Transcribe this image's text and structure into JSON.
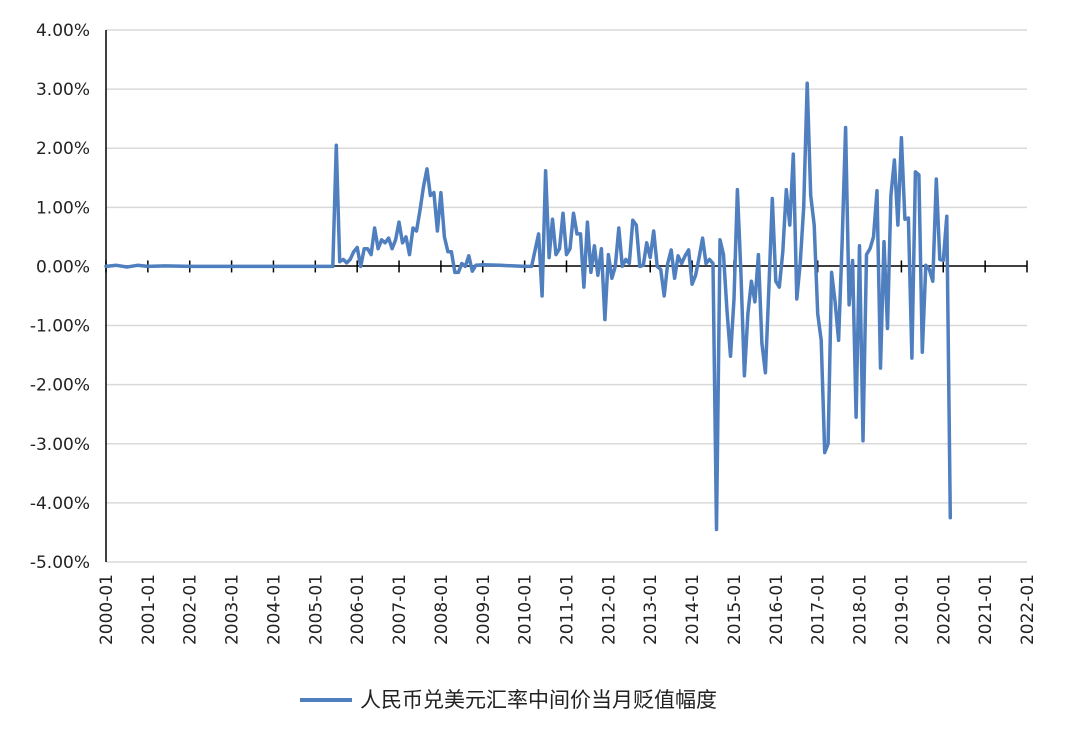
{
  "chart_data": {
    "type": "line",
    "title": "",
    "xlabel": "",
    "ylabel": "",
    "ylim": [
      -0.05,
      0.04
    ],
    "y_ticks": [
      "4.00%",
      "3.00%",
      "2.00%",
      "1.00%",
      "0.00%",
      "-1.00%",
      "-2.00%",
      "-3.00%",
      "-4.00%",
      "-5.00%"
    ],
    "y_tick_values": [
      0.04,
      0.03,
      0.02,
      0.01,
      0.0,
      -0.01,
      -0.02,
      -0.03,
      -0.04,
      -0.05
    ],
    "x_ticks": [
      "2000-01",
      "2001-01",
      "2002-01",
      "2003-01",
      "2004-01",
      "2005-01",
      "2006-01",
      "2007-01",
      "2008-01",
      "2009-01",
      "2010-01",
      "2011-01",
      "2012-01",
      "2013-01",
      "2014-01",
      "2015-01",
      "2016-01",
      "2017-01",
      "2018-01",
      "2019-01",
      "2020-01",
      "2021-01",
      "2022-01"
    ],
    "x_range": [
      "2000-01",
      "2022-01"
    ],
    "grid": "horizontal",
    "legend_position": "bottom",
    "colors": {
      "series": "#4f7fbf",
      "grid": "#d9d9d9",
      "axis": "#000000"
    },
    "series": [
      {
        "name": "人民币兑美元汇率中间价当月贬值幅度",
        "points": [
          [
            "2000-01",
            0.0
          ],
          [
            "2000-04",
            0.0002
          ],
          [
            "2000-07",
            -0.0001
          ],
          [
            "2000-10",
            0.0002
          ],
          [
            "2001-01",
            0.0
          ],
          [
            "2001-06",
            0.0001
          ],
          [
            "2002-01",
            0.0
          ],
          [
            "2003-01",
            0.0
          ],
          [
            "2004-01",
            0.0
          ],
          [
            "2005-01",
            0.0
          ],
          [
            "2005-06",
            0.0
          ],
          [
            "2005-07",
            0.0205
          ],
          [
            "2005-08",
            0.0008
          ],
          [
            "2005-09",
            0.0012
          ],
          [
            "2005-10",
            0.0006
          ],
          [
            "2005-11",
            0.0012
          ],
          [
            "2005-12",
            0.0025
          ],
          [
            "2006-01",
            0.0032
          ],
          [
            "2006-02",
            0.0
          ],
          [
            "2006-03",
            0.003
          ],
          [
            "2006-04",
            0.003
          ],
          [
            "2006-05",
            0.002
          ],
          [
            "2006-06",
            0.0065
          ],
          [
            "2006-07",
            0.003
          ],
          [
            "2006-08",
            0.0045
          ],
          [
            "2006-09",
            0.004
          ],
          [
            "2006-10",
            0.0048
          ],
          [
            "2006-11",
            0.003
          ],
          [
            "2006-12",
            0.0045
          ],
          [
            "2007-01",
            0.0075
          ],
          [
            "2007-02",
            0.004
          ],
          [
            "2007-03",
            0.005
          ],
          [
            "2007-04",
            0.002
          ],
          [
            "2007-05",
            0.0065
          ],
          [
            "2007-06",
            0.006
          ],
          [
            "2007-07",
            0.0095
          ],
          [
            "2007-08",
            0.0135
          ],
          [
            "2007-09",
            0.0165
          ],
          [
            "2007-10",
            0.012
          ],
          [
            "2007-11",
            0.0125
          ],
          [
            "2007-12",
            0.006
          ],
          [
            "2008-01",
            0.0125
          ],
          [
            "2008-02",
            0.005
          ],
          [
            "2008-03",
            0.0025
          ],
          [
            "2008-04",
            0.0025
          ],
          [
            "2008-05",
            -0.001
          ],
          [
            "2008-06",
            -0.001
          ],
          [
            "2008-07",
            0.0005
          ],
          [
            "2008-08",
            0.0
          ],
          [
            "2008-09",
            0.0018
          ],
          [
            "2008-10",
            -0.0008
          ],
          [
            "2008-11",
            0.0002
          ],
          [
            "2009-01",
            0.0003
          ],
          [
            "2009-06",
            0.0002
          ],
          [
            "2010-01",
            0.0
          ],
          [
            "2010-03",
            0.0
          ],
          [
            "2010-05",
            0.0055
          ],
          [
            "2010-06",
            -0.005
          ],
          [
            "2010-07",
            0.0162
          ],
          [
            "2010-08",
            0.0015
          ],
          [
            "2010-09",
            0.008
          ],
          [
            "2010-10",
            0.002
          ],
          [
            "2010-11",
            0.003
          ],
          [
            "2010-12",
            0.009
          ],
          [
            "2011-01",
            0.002
          ],
          [
            "2011-02",
            0.003
          ],
          [
            "2011-03",
            0.009
          ],
          [
            "2011-04",
            0.0055
          ],
          [
            "2011-05",
            0.0055
          ],
          [
            "2011-06",
            -0.0035
          ],
          [
            "2011-07",
            0.0075
          ],
          [
            "2011-08",
            -0.001
          ],
          [
            "2011-09",
            0.0035
          ],
          [
            "2011-10",
            -0.0015
          ],
          [
            "2011-11",
            0.003
          ],
          [
            "2011-12",
            -0.009
          ],
          [
            "2012-01",
            0.002
          ],
          [
            "2012-02",
            -0.002
          ],
          [
            "2012-03",
            0.0
          ],
          [
            "2012-04",
            0.0065
          ],
          [
            "2012-05",
            0.0
          ],
          [
            "2012-06",
            0.0012
          ],
          [
            "2012-07",
            0.0005
          ],
          [
            "2012-08",
            0.0078
          ],
          [
            "2012-09",
            0.007
          ],
          [
            "2012-10",
            0.0
          ],
          [
            "2012-11",
            0.0002
          ],
          [
            "2012-12",
            0.004
          ],
          [
            "2013-01",
            0.0015
          ],
          [
            "2013-02",
            0.006
          ],
          [
            "2013-03",
            0.0
          ],
          [
            "2013-04",
            -0.0005
          ],
          [
            "2013-05",
            -0.005
          ],
          [
            "2013-06",
            0.0005
          ],
          [
            "2013-07",
            0.0028
          ],
          [
            "2013-08",
            -0.002
          ],
          [
            "2013-09",
            0.0018
          ],
          [
            "2013-10",
            0.0005
          ],
          [
            "2013-11",
            0.0018
          ],
          [
            "2013-12",
            0.0028
          ],
          [
            "2014-01",
            -0.003
          ],
          [
            "2014-02",
            -0.0015
          ],
          [
            "2014-03",
            0.0015
          ],
          [
            "2014-04",
            0.0048
          ],
          [
            "2014-05",
            0.0005
          ],
          [
            "2014-06",
            0.0012
          ],
          [
            "2014-07",
            0.0005
          ],
          [
            "2014-08",
            -0.0445
          ],
          [
            "2014-09",
            0.0045
          ],
          [
            "2014-10",
            0.002
          ],
          [
            "2014-11",
            -0.0075
          ],
          [
            "2014-12",
            -0.0152
          ],
          [
            "2015-01",
            -0.0055
          ],
          [
            "2015-02",
            0.013
          ],
          [
            "2015-03",
            -0.001
          ],
          [
            "2015-04",
            -0.0185
          ],
          [
            "2015-05",
            -0.008
          ],
          [
            "2015-06",
            -0.0025
          ],
          [
            "2015-07",
            -0.006
          ],
          [
            "2015-08",
            0.002
          ],
          [
            "2015-09",
            -0.013
          ],
          [
            "2015-10",
            -0.018
          ],
          [
            "2015-11",
            -0.004
          ],
          [
            "2015-12",
            0.0115
          ],
          [
            "2016-01",
            -0.0025
          ],
          [
            "2016-02",
            -0.0035
          ],
          [
            "2016-03",
            0.0025
          ],
          [
            "2016-04",
            0.013
          ],
          [
            "2016-05",
            0.007
          ],
          [
            "2016-06",
            0.019
          ],
          [
            "2016-07",
            -0.0055
          ],
          [
            "2016-08",
            0.0005
          ],
          [
            "2016-09",
            0.01
          ],
          [
            "2016-10",
            0.031
          ],
          [
            "2016-11",
            0.012
          ],
          [
            "2016-12",
            0.007
          ],
          [
            "2017-01",
            -0.008
          ],
          [
            "2017-02",
            -0.0125
          ],
          [
            "2017-03",
            -0.0315
          ],
          [
            "2017-04",
            -0.03
          ],
          [
            "2017-05",
            -0.001
          ],
          [
            "2017-06",
            -0.006
          ],
          [
            "2017-07",
            -0.0125
          ],
          [
            "2017-08",
            0.004
          ],
          [
            "2017-09",
            0.0235
          ],
          [
            "2017-10",
            -0.0065
          ],
          [
            "2017-11",
            0.001
          ],
          [
            "2017-12",
            -0.0255
          ],
          [
            "2018-01",
            0.0035
          ],
          [
            "2018-02",
            -0.0295
          ],
          [
            "2018-03",
            0.002
          ],
          [
            "2018-04",
            0.003
          ],
          [
            "2018-05",
            0.005
          ],
          [
            "2018-06",
            0.0128
          ],
          [
            "2018-07",
            -0.0172
          ],
          [
            "2018-08",
            0.0042
          ],
          [
            "2018-09",
            -0.0105
          ],
          [
            "2018-10",
            0.012
          ],
          [
            "2018-11",
            0.018
          ],
          [
            "2018-12",
            0.007
          ],
          [
            "2019-01",
            0.0218
          ],
          [
            "2019-02",
            0.008
          ],
          [
            "2019-03",
            0.0082
          ],
          [
            "2019-04",
            -0.0155
          ],
          [
            "2019-05",
            0.016
          ],
          [
            "2019-06",
            0.0155
          ],
          [
            "2019-07",
            -0.0145
          ],
          [
            "2019-08",
            0.0002
          ],
          [
            "2019-09",
            -0.0005
          ],
          [
            "2019-10",
            -0.0025
          ],
          [
            "2019-11",
            0.0148
          ],
          [
            "2019-12",
            0.0012
          ],
          [
            "2020-01",
            0.001
          ],
          [
            "2020-02",
            0.0085
          ],
          [
            "2020-03",
            -0.0425
          ]
        ]
      }
    ]
  }
}
